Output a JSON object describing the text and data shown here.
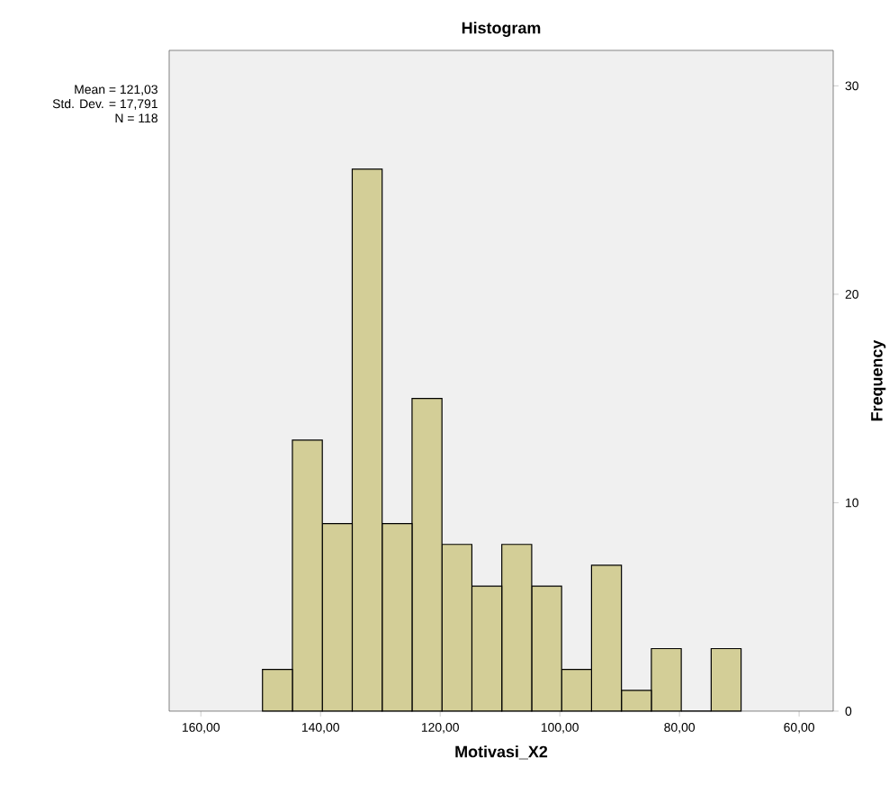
{
  "chart_data": {
    "type": "histogram",
    "title": "Histogram",
    "xlabel": "Motivasi_X2",
    "ylabel": "Frequency",
    "bins": [
      69.7,
      74.7,
      79.7,
      84.7,
      89.7,
      94.7,
      99.7,
      104.7,
      109.7,
      114.7,
      119.7,
      124.7,
      129.7,
      134.7,
      139.7,
      144.7,
      149.7
    ],
    "values": [
      3,
      0,
      3,
      1,
      7,
      2,
      6,
      8,
      6,
      8,
      15,
      9,
      26,
      9,
      13,
      2
    ],
    "color": "#d3ce97",
    "xlim": [
      165.3,
      54.3
    ],
    "ylim": [
      0,
      31.7
    ],
    "xticks": [
      {
        "value": 160,
        "label": "160,00"
      },
      {
        "value": 140,
        "label": "140,00"
      },
      {
        "value": 120,
        "label": "120,00"
      },
      {
        "value": 100,
        "label": "100,00"
      },
      {
        "value": 80,
        "label": "80,00"
      },
      {
        "value": 60,
        "label": "60,00"
      }
    ],
    "yticks": [
      0,
      10,
      20,
      30
    ],
    "annotations": [
      "Mean = 121,03",
      "Std. Dev. = 17,791",
      "N = 118"
    ],
    "grid": false
  }
}
